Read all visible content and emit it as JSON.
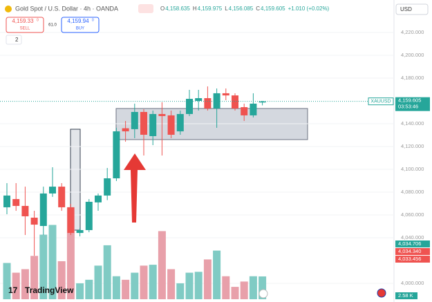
{
  "header": {
    "title": "Gold Spot / U.S. Dollar · 4h · OANDA",
    "ohlc": [
      {
        "key": "O",
        "value": "4,158.635"
      },
      {
        "key": "H",
        "value": "4,159.975"
      },
      {
        "key": "L",
        "value": "4,156.085"
      },
      {
        "key": "C",
        "value": "4,159.605"
      }
    ],
    "change": "+1.010 (+0.02%)",
    "currency": "USD"
  },
  "trade": {
    "sell_price": "4,159.33",
    "sell_sup": "0",
    "sell_label": "SELL",
    "spread": "61.0",
    "buy_price": "4,159.94",
    "buy_sup": "0",
    "buy_label": "BUY",
    "collapse": "2"
  },
  "chart_data": {
    "type": "candlestick",
    "open": [
      4066.7,
      4073.9,
      4067.9,
      4057.6,
      4050.3,
      4078.8,
      4084.8,
      4066.7,
      4044.2,
      4046.7,
      4071.0,
      4077.0,
      4092.1,
      4136.0,
      4135.2,
      4150.3,
      4129.1,
      4148.5,
      4147.3,
      4133.3,
      4148.5,
      4160.0,
      4162.4,
      4153.3,
      4166.7,
      4164.8,
      4154.5,
      4147.3,
      4158.6
    ],
    "high": [
      4087.9,
      4087.9,
      4084.8,
      4063.6,
      4084.8,
      4101.8,
      4087.9,
      4069.7,
      4048.5,
      4073.9,
      4078.8,
      4101.2,
      4136.4,
      4142.4,
      4157.6,
      4152.7,
      4151.5,
      4158.8,
      4151.5,
      4151.5,
      4169.7,
      4169.7,
      4172.7,
      4170.9,
      4170.9,
      4166.7,
      4157.6,
      4166.7,
      4160.0
    ],
    "low": [
      4060.6,
      4063.6,
      4042.4,
      4024.2,
      4042.4,
      4075.8,
      4063.6,
      4042.4,
      4041.2,
      4044.8,
      4063.6,
      4073.0,
      4089.7,
      4124.2,
      4127.3,
      4112.1,
      4121.2,
      4112.1,
      4127.3,
      4130.3,
      4146.7,
      4151.5,
      4151.5,
      4136.4,
      4160.6,
      4151.5,
      4142.4,
      4145.5,
      4156.1
    ],
    "close": [
      4077.0,
      4067.9,
      4058.8,
      4051.5,
      4078.8,
      4084.8,
      4066.7,
      4044.2,
      4046.7,
      4071.5,
      4077.0,
      4092.1,
      4133.3,
      4133.3,
      4150.3,
      4130.3,
      4148.5,
      4146.7,
      4130.3,
      4148.5,
      4161.8,
      4162.4,
      4153.3,
      4166.7,
      4164.8,
      4153.3,
      4147.3,
      4157.6,
      4159.6
    ],
    "volume": [
      4.1,
      3.0,
      3.4,
      4.9,
      7.3,
      8.4,
      4.3,
      10.4,
      1.8,
      2.2,
      3.8,
      6.1,
      2.6,
      2.2,
      3.0,
      3.8,
      3.9,
      7.7,
      3.4,
      1.8,
      3.0,
      3.1,
      4.5,
      5.5,
      2.6,
      1.4,
      2.0,
      2.6,
      2.58
    ],
    "up_color": "#26a69a",
    "down_color": "#ef5350",
    "volume_up_color": "#80cbc4",
    "volume_down_color": "#e8a0aa",
    "ylim": [
      3990,
      4240
    ],
    "yticks": [
      {
        "value": 4220,
        "label": "4,220.000"
      },
      {
        "value": 4200,
        "label": "4,200.000"
      },
      {
        "value": 4180,
        "label": "4,180.000"
      },
      {
        "value": 4140,
        "label": "4,140.000"
      },
      {
        "value": 4120,
        "label": "4,120.000"
      },
      {
        "value": 4100,
        "label": "4,100.000"
      },
      {
        "value": 4080,
        "label": "4,080.000"
      },
      {
        "value": 4060,
        "label": "4,060.000"
      },
      {
        "value": 4040,
        "label": "4,040.000"
      },
      {
        "value": 4000,
        "label": "4,000.000"
      }
    ],
    "grid": true,
    "symbol": "XAUUSD",
    "last_price": {
      "value": 4159.605,
      "label": "4,159.605"
    },
    "countdown": "03:53:46",
    "side_labels": [
      {
        "label": "4,034.706",
        "color": "#26a69a"
      },
      {
        "label": "4,034.340",
        "color": "#ef5350"
      },
      {
        "label": "4,033.456",
        "color": "#ef5350"
      }
    ],
    "volume_label": "2.58 K",
    "brand": "TradingView"
  }
}
